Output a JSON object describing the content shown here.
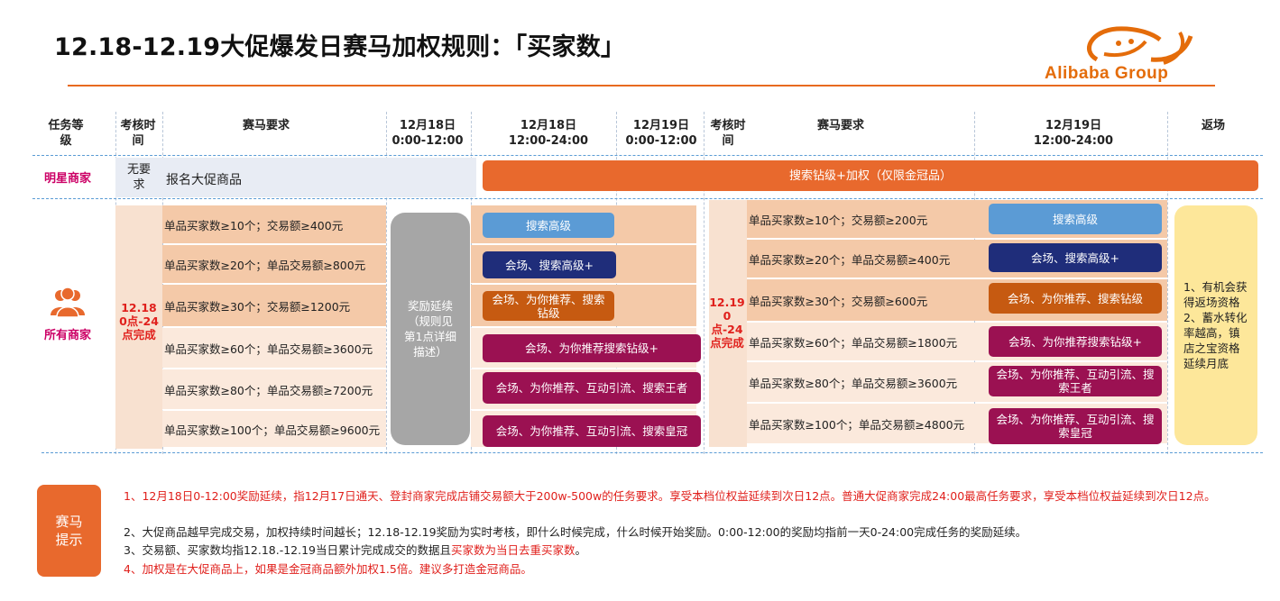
{
  "title": "12.18-12.19大促爆发日赛马加权规则：「买家数」",
  "logo": {
    "text": "Alibaba Group"
  },
  "headers": {
    "task_level": "任务等级",
    "assess_time": "考核时间",
    "race_req": "赛马要求",
    "d1_am": "12月18日 0:00-12:00",
    "d1_pm": "12月18日 12:00-24:00",
    "d2_am": "12月19日 0:00-12:00",
    "assess_time2": "考核时间",
    "race_req2": "赛马要求",
    "d2_pm": "12月19日 12:00-24:00",
    "return": "返场"
  },
  "star_row": {
    "label": "明星商家",
    "time": "无要求",
    "req": "报名大促商品",
    "bar": "搜索钻级+加权（仅限金冠品）"
  },
  "all_row": {
    "label": "所有商家",
    "time1": "12.18 0点-24点完成",
    "time2": "12.19 0点-24点完成",
    "delay": "奖励延续（规则见第1点详细描述）",
    "return_text": "1、有机会获得返场资格 2、蓄水转化率越高，镇店之宝资格延续月底",
    "reqs1": [
      "单品买家数≥10个；交易额≥400元",
      "单品买家数≥20个；单品交易额≥800元",
      "单品买家数≥30个；交易额≥1200元",
      "单品买家数≥60个；单品交易额≥3600元",
      "单品买家数≥80个；单品交易额≥7200元",
      "单品买家数≥100个；单品交易额≥9600元"
    ],
    "rewards1": [
      "搜索高级",
      "会场、搜索高级+",
      "会场、为你推荐、搜索钻级",
      "会场、为你推荐搜索钻级+",
      "会场、为你推荐、互动引流、搜索王者",
      "会场、为你推荐、互动引流、搜索皇冠"
    ],
    "reqs2": [
      "单品买家数≥10个；交易额≥200元",
      "单品买家数≥20个；单品交易额≥400元",
      "单品买家数≥30个；交易额≥600元",
      "单品买家数≥60个；单品交易额≥1800元",
      "单品买家数≥80个；单品交易额≥3600元",
      "单品买家数≥100个；单品交易额≥4800元"
    ],
    "rewards2": [
      "搜索高级",
      "会场、搜索高级+",
      "会场、为你推荐、搜索钻级",
      "会场、为你推荐搜索钻级+",
      "会场、为你推荐、互动引流、搜索王者",
      "会场、为你推荐、互动引流、搜索皇冠"
    ]
  },
  "tips": {
    "badge": "赛马提示",
    "note1": "1、12月18日0-12:00奖励延续，指12月17日通天、登封商家完成店铺交易额大于200w-500w的任务要求。享受本档位权益延续到次日12点。普通大促商家完成24:00最高任务要求，享受本档位权益延续到次日12点。",
    "note2": "2、大促商品越早完成交易，加权持续时间越长；12.18-12.19奖励为实时考核，即什么时候完成，什么时候开始奖励。0:00-12:00的奖励均指前一天0-24:00完成任务的奖励延续。",
    "note3a": "3、交易额、买家数均指12.18.-12.19当日累计完成成交的数据且",
    "note3b": "买家数为当日去重买家数",
    "note3c": "。",
    "note4": "4、加权是在大促商品上，如果是金冠商品额外加权1.5倍。建议多打造金冠商品。"
  },
  "colors": {
    "orange": "#e8692d",
    "light_blue": "#5b9bd5",
    "navy": "#1f2d7a",
    "dark_orange": "#c65a11",
    "magenta": "#9b1152",
    "gray": "#a6a6a6",
    "yellow": "#fde79a",
    "peach": "#f4c9a8"
  }
}
